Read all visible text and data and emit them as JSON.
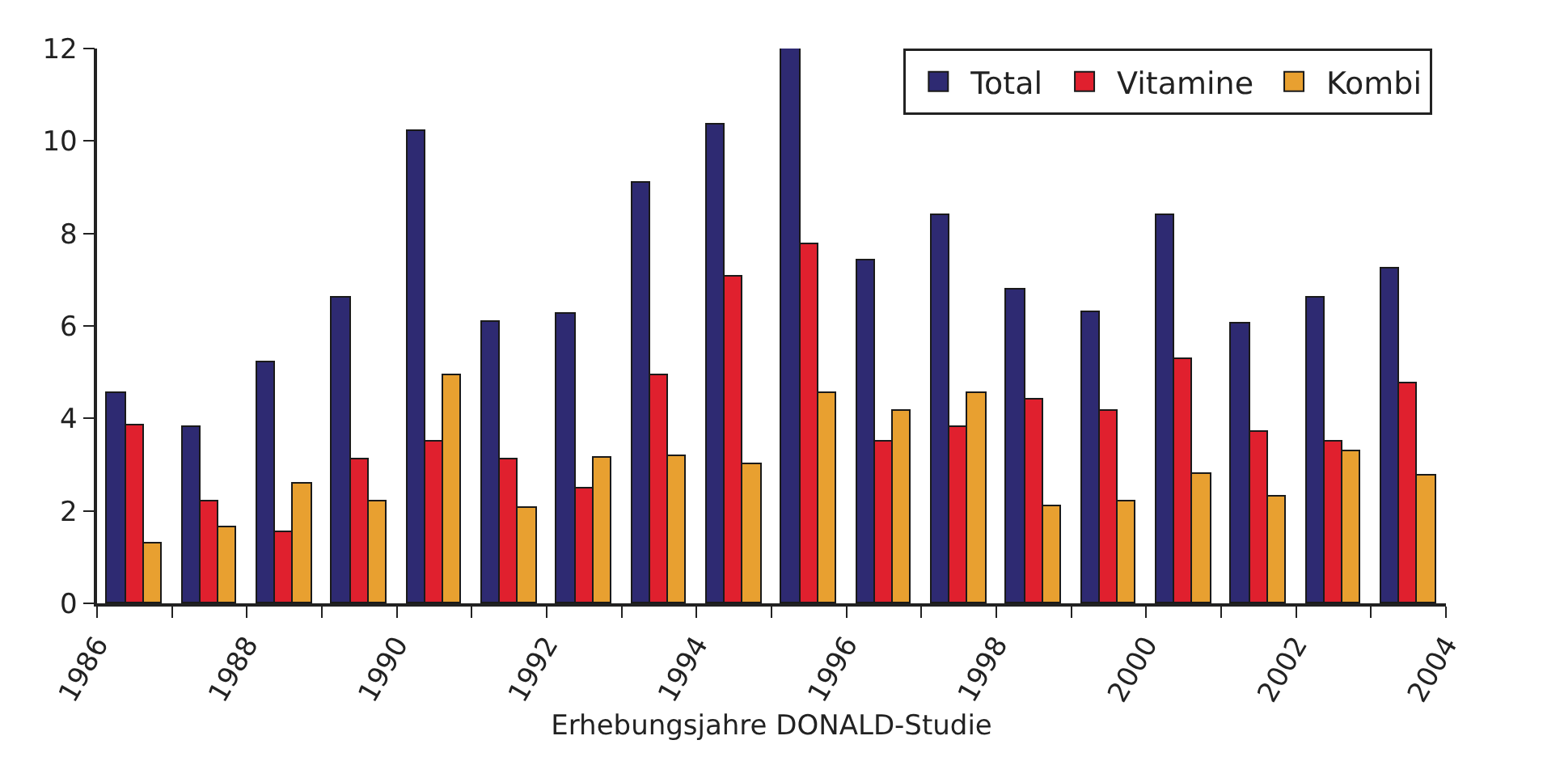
{
  "chart_data": {
    "type": "bar",
    "xlabel": "Erhebungsjahre DONALD-Studie",
    "x": [
      1986.5,
      1987.5,
      1988.5,
      1989.5,
      1990.5,
      1991.5,
      1992.5,
      1993.5,
      1994.5,
      1995.5,
      1996.5,
      1997.5,
      1998.5,
      1999.5,
      2000.5,
      2001.5,
      2002.5,
      2003.5
    ],
    "series": [
      {
        "name": "Total",
        "color": "#2e2a72",
        "values": [
          4.55,
          3.8,
          5.2,
          6.6,
          10.2,
          6.1,
          6.25,
          9.1,
          10.35,
          12.0,
          7.4,
          8.4,
          6.8,
          6.3,
          8.4,
          6.05,
          6.6,
          7.25
        ]
      },
      {
        "name": "Vitamine",
        "color": "#e0202e",
        "values": [
          3.85,
          2.2,
          1.55,
          3.1,
          3.5,
          3.1,
          2.5,
          4.95,
          7.05,
          7.75,
          3.5,
          3.8,
          4.4,
          4.15,
          5.3,
          3.7,
          3.5,
          4.75
        ]
      },
      {
        "name": "Kombi",
        "color": "#e8a030",
        "values": [
          1.3,
          1.65,
          2.6,
          2.2,
          4.95,
          2.05,
          3.15,
          3.2,
          3.0,
          4.55,
          4.15,
          4.55,
          2.1,
          2.2,
          2.8,
          2.3,
          3.3,
          2.75
        ]
      }
    ],
    "xlim": [
      1986,
      2004
    ],
    "xticks": [
      1986,
      {
        "value": 1987,
        "label": null
      },
      1988,
      {
        "value": 1989,
        "label": null
      },
      1990,
      {
        "value": 1991,
        "label": null
      },
      1992,
      {
        "value": 1993,
        "label": null
      },
      1994,
      {
        "value": 1995,
        "label": null
      },
      1996,
      {
        "value": 1997,
        "label": null
      },
      1998,
      {
        "value": 1999,
        "label": null
      },
      2000,
      {
        "value": 2001,
        "label": null
      },
      2002,
      {
        "value": 2003,
        "label": null
      },
      2004
    ],
    "ylim": [
      0,
      12
    ],
    "yticks": [
      0,
      2,
      4,
      6,
      8,
      10,
      12
    ],
    "legend": "top right"
  }
}
